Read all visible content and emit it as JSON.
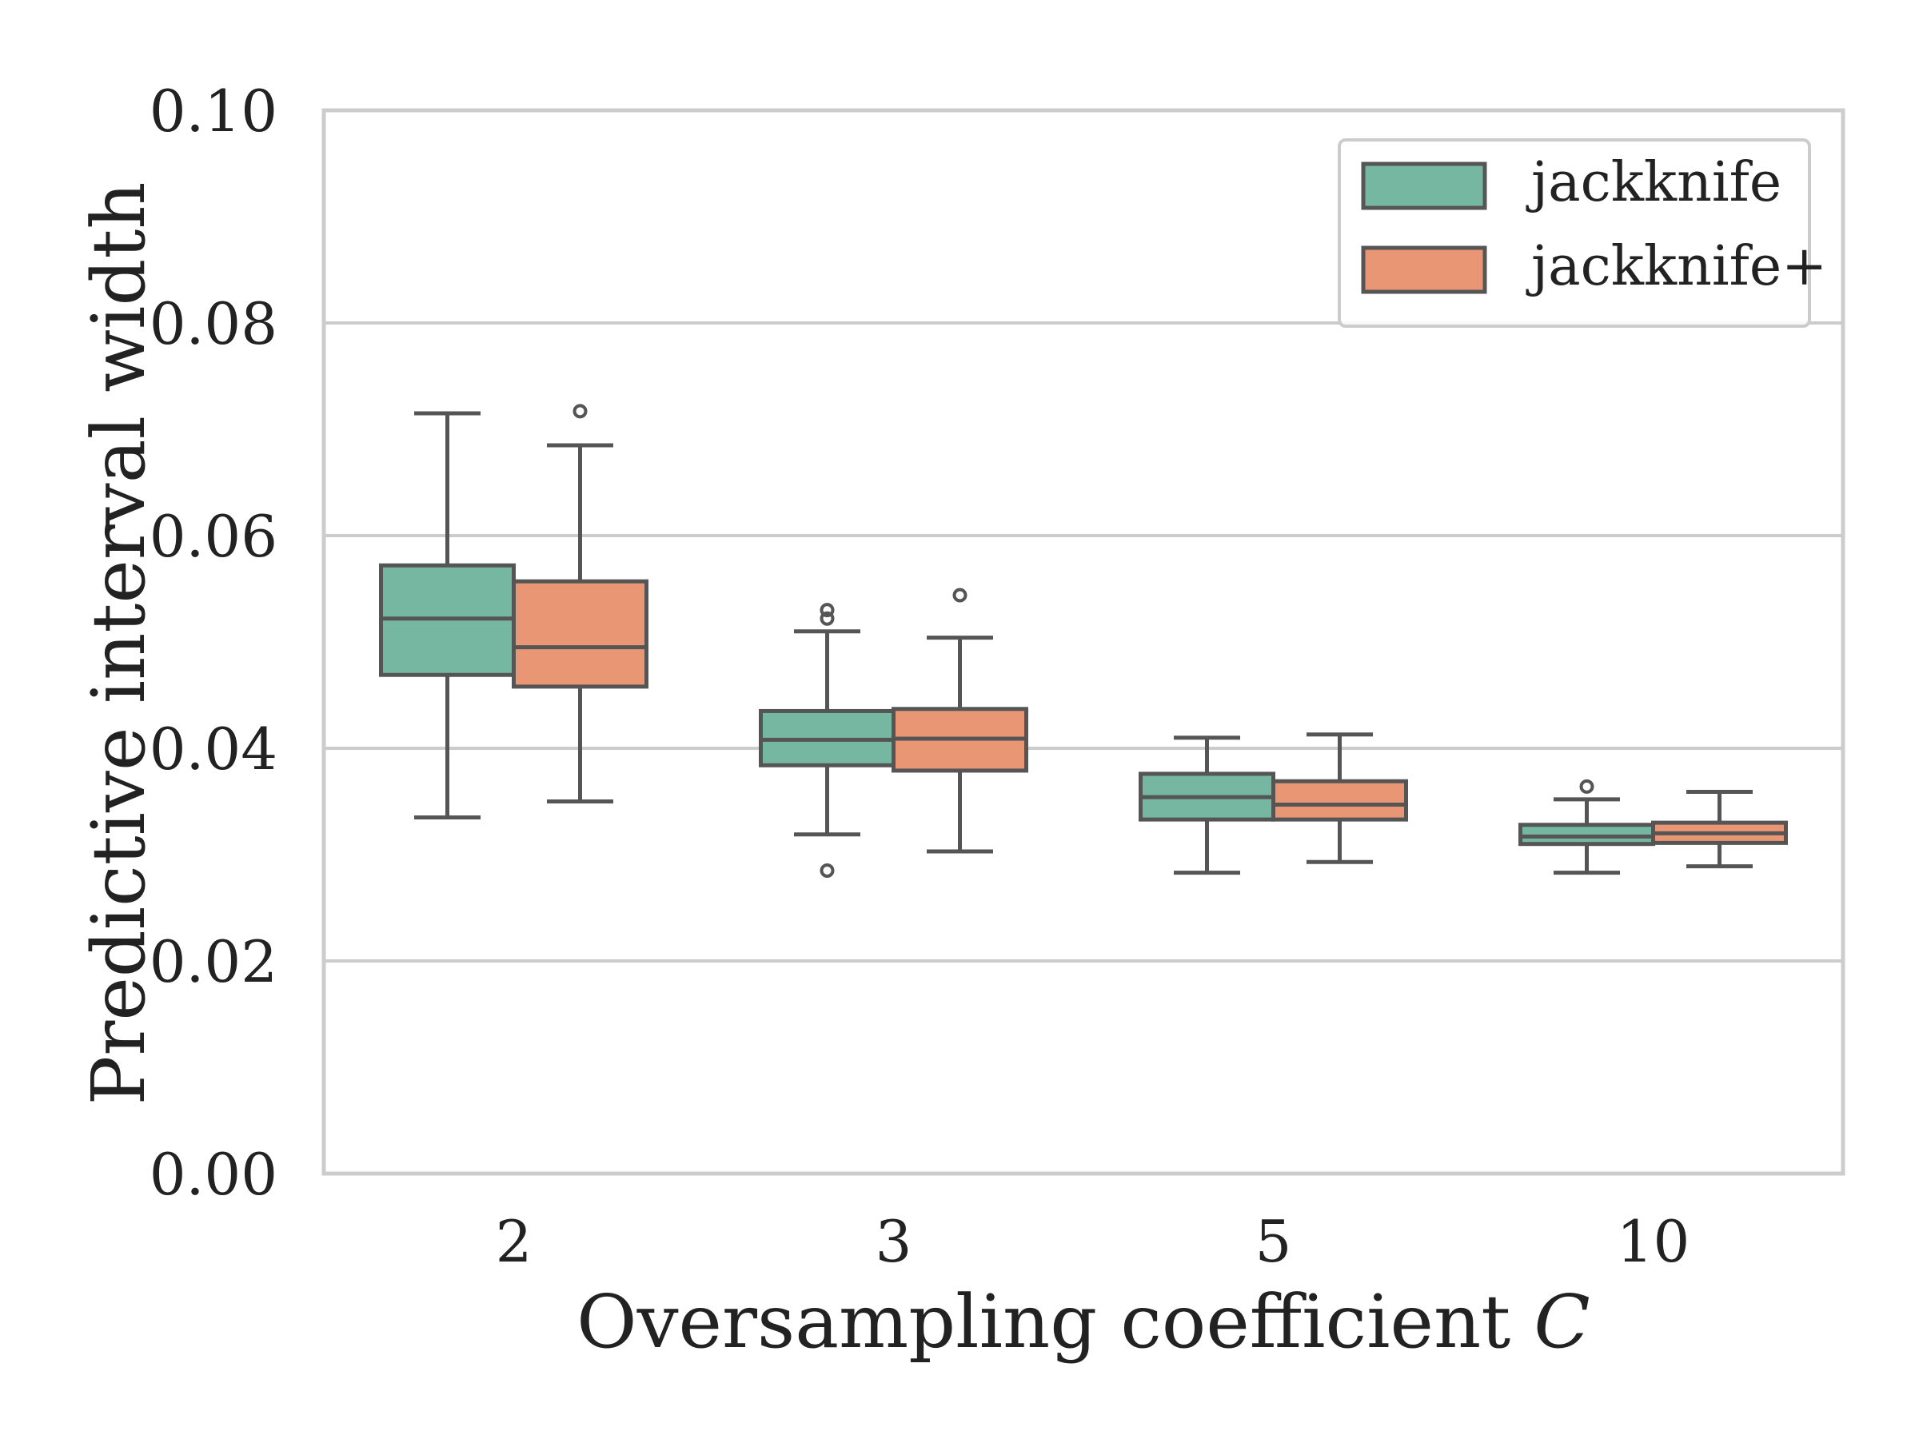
{
  "chart_data": {
    "type": "boxplot",
    "title": "",
    "xlabel": "Oversampling coefficient",
    "xlabel_symbol": "C",
    "ylabel": "Predictive interval width",
    "ylim": [
      0.0,
      0.1
    ],
    "yticks": [
      "0.00",
      "0.02",
      "0.04",
      "0.06",
      "0.08",
      "0.10"
    ],
    "ytick_values": [
      0.0,
      0.02,
      0.04,
      0.06,
      0.08,
      0.1
    ],
    "grid": "horizontal",
    "legend_position": "top-right",
    "categories": [
      "2",
      "3",
      "5",
      "10"
    ],
    "series": [
      {
        "name": "jackknife",
        "color": "#76b7a1",
        "boxes": [
          {
            "whisker_low": 0.0335,
            "q1": 0.0469,
            "median": 0.0522,
            "q3": 0.0572,
            "whisker_high": 0.0715,
            "outliers": []
          },
          {
            "whisker_low": 0.0319,
            "q1": 0.0384,
            "median": 0.0408,
            "q3": 0.0435,
            "whisker_high": 0.051,
            "outliers": [
              0.0285,
              0.0522,
              0.053
            ]
          },
          {
            "whisker_low": 0.0283,
            "q1": 0.0333,
            "median": 0.0354,
            "q3": 0.0376,
            "whisker_high": 0.041,
            "outliers": []
          },
          {
            "whisker_low": 0.0283,
            "q1": 0.031,
            "median": 0.0317,
            "q3": 0.0328,
            "whisker_high": 0.0352,
            "outliers": [
              0.0364
            ]
          }
        ]
      },
      {
        "name": "jackknife+",
        "color": "#e99675",
        "boxes": [
          {
            "whisker_low": 0.035,
            "q1": 0.0458,
            "median": 0.0495,
            "q3": 0.0557,
            "whisker_high": 0.0685,
            "outliers": [
              0.0717
            ]
          },
          {
            "whisker_low": 0.0303,
            "q1": 0.0379,
            "median": 0.0409,
            "q3": 0.0437,
            "whisker_high": 0.0504,
            "outliers": [
              0.0544
            ]
          },
          {
            "whisker_low": 0.0293,
            "q1": 0.0333,
            "median": 0.0347,
            "q3": 0.0369,
            "whisker_high": 0.0413,
            "outliers": []
          },
          {
            "whisker_low": 0.0289,
            "q1": 0.0311,
            "median": 0.032,
            "q3": 0.033,
            "whisker_high": 0.0359,
            "outliers": []
          }
        ]
      }
    ],
    "colors": {
      "grid": "#cccccc",
      "frame": "#cccccc",
      "box_edge": "#555555",
      "text": "#222222"
    }
  }
}
